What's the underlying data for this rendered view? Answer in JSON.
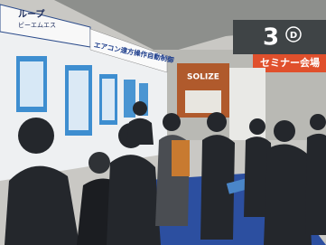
{
  "signs": {
    "top_left_banner": "ループ",
    "top_left_banner_sub": "ビーエムエス",
    "wall_banner": "エアコン遠方操作自動制御",
    "hall_number": "3",
    "hall_letter": "D",
    "seminar_banner": "セミナー会場",
    "booth_logo": "SOLIZE"
  }
}
